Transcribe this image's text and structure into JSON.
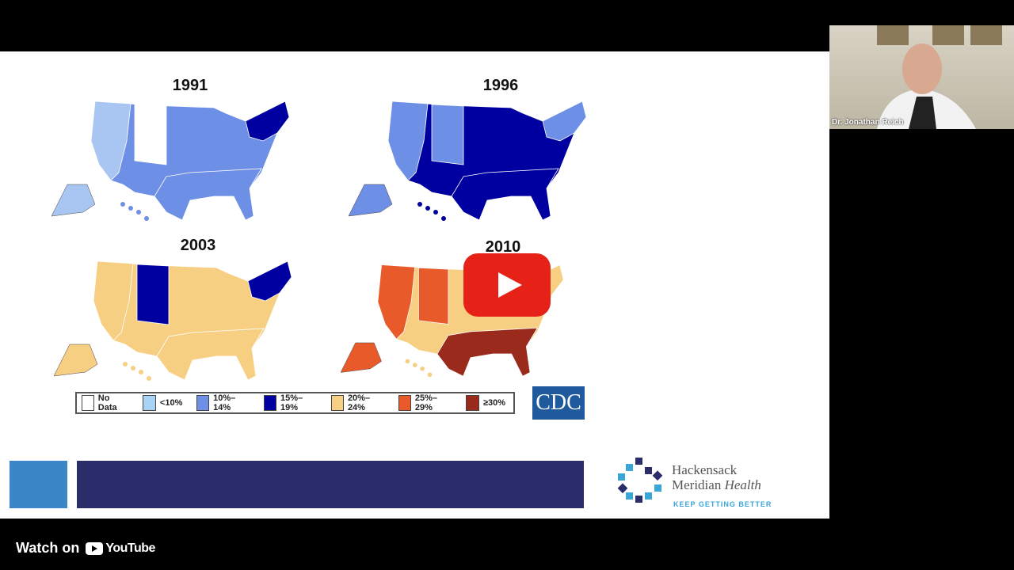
{
  "slide": {
    "maps": [
      {
        "year": "1991",
        "colors": {
          "base": "#6e8fe6",
          "west": "#a9c6f2",
          "mid": "#ffffff",
          "south": "#6e8fe6",
          "east": "#0000a0"
        }
      },
      {
        "year": "1996",
        "colors": {
          "base": "#0000a0",
          "west": "#6e8fe6",
          "mid": "#6e8fe6",
          "south": "#0000a0",
          "east": "#6e8fe6"
        }
      },
      {
        "year": "2003",
        "colors": {
          "base": "#f6cf82",
          "west": "#f6cf82",
          "mid": "#0000a0",
          "south": "#f6cf82",
          "east": "#0000a0"
        }
      },
      {
        "year": "2010",
        "colors": {
          "base": "#f6cf82",
          "west": "#e85a2a",
          "mid": "#e85a2a",
          "south": "#9a2a1c",
          "east": "#f6cf82"
        }
      }
    ],
    "legend": [
      {
        "label": "No Data",
        "color": "#ffffff"
      },
      {
        "label": "<10%",
        "color": "#a9d3f5"
      },
      {
        "label": "10%–14%",
        "color": "#6e8fe6"
      },
      {
        "label": "15%–19%",
        "color": "#0000a0"
      },
      {
        "label": "20%–24%",
        "color": "#f6cf82"
      },
      {
        "label": "25%–29%",
        "color": "#e85a2a"
      },
      {
        "label": "≥30%",
        "color": "#9a2a1c"
      }
    ],
    "cdc_logo": "CDC",
    "brand": {
      "line1": "Hackensack",
      "line2a": "Meridian ",
      "line2b": "Health",
      "tagline": "KEEP GETTING BETTER"
    }
  },
  "webcam": {
    "name": "Dr. Jonathan Reich"
  },
  "player": {
    "watch_on": "Watch on",
    "youtube": "YouTube",
    "play_icon": "play-icon"
  }
}
